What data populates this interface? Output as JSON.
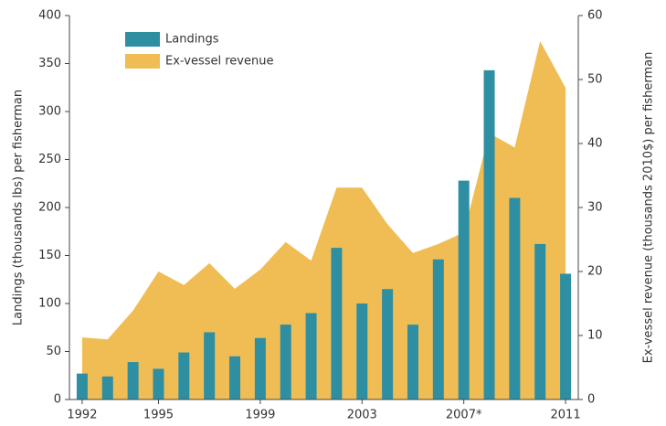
{
  "chart_data": {
    "type": "bar_area",
    "categories": [
      "1992",
      null,
      null,
      "1995",
      null,
      null,
      null,
      "1999",
      null,
      null,
      null,
      "2003",
      null,
      null,
      null,
      "2007*",
      null,
      null,
      null,
      "2011"
    ],
    "series": [
      {
        "name": "Landings",
        "color": "#2e8fa3",
        "kind": "bar",
        "values": [
          27,
          24,
          39,
          32,
          49,
          70,
          45,
          64,
          78,
          90,
          158,
          100,
          115,
          78,
          146,
          228,
          343,
          210,
          162,
          131
        ]
      },
      {
        "name": "Ex-vessel revenue",
        "color": "#f0bd55",
        "kind": "area",
        "axis": "y2",
        "values": [
          9.7,
          9.4,
          13.9,
          20,
          17.9,
          21.3,
          17.3,
          20.3,
          24.6,
          21.7,
          33.1,
          33.1,
          27.4,
          22.9,
          24.3,
          26.1,
          41.6,
          39.4,
          56,
          48.7
        ]
      }
    ],
    "ylabel": "Landings (thousands lbs) per fisherman",
    "y2label": "Ex-vessel revenue (thousands 2010$) per fisherman",
    "ylim": [
      0,
      400
    ],
    "yticks": [
      0,
      50,
      100,
      150,
      200,
      250,
      300,
      350,
      400
    ],
    "y2lim": [
      0,
      60
    ],
    "y2ticks": [
      0,
      10,
      20,
      30,
      40,
      50,
      60
    ]
  }
}
